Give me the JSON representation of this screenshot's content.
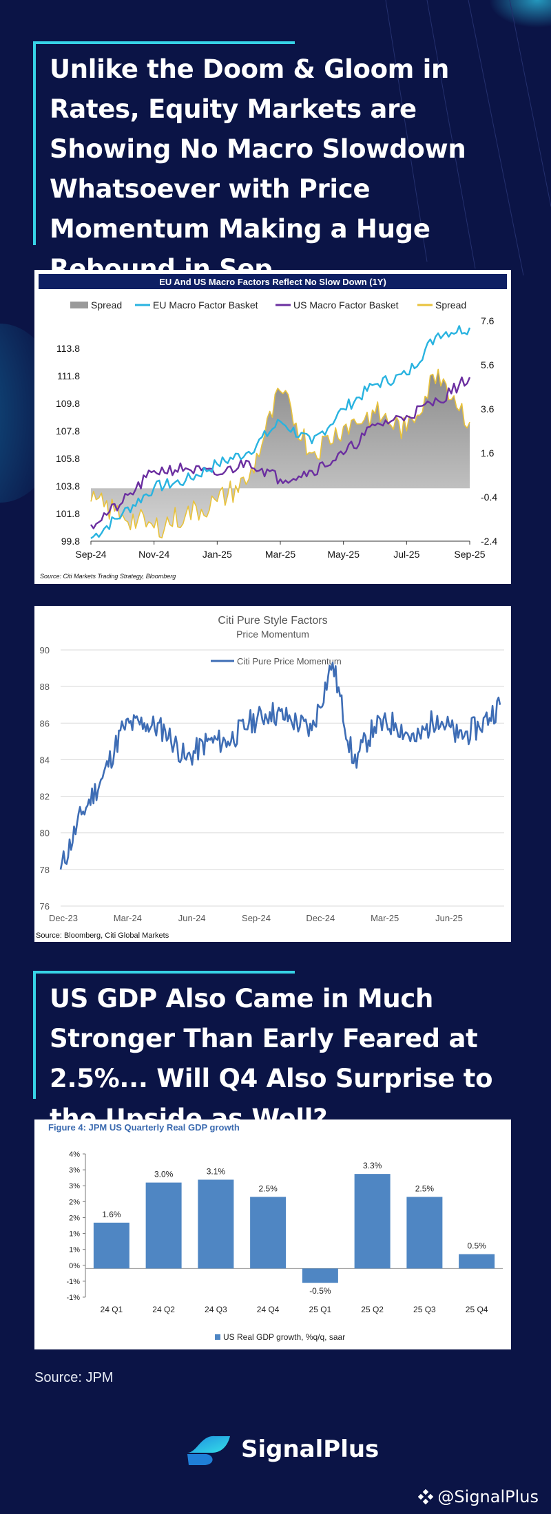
{
  "headline1": "Unlike the Doom & Gloom in Rates, Equity Markets are Showing No Macro Slowdown Whatsoever with Price Momentum Making a Huge Rebound in Sep",
  "headline2": "US GDP Also Came in Much Stronger Than Early Feared at 2.5%... Will Q4 Also Surprise to the Upside as Well?",
  "footer_source": "Source: JPM",
  "brand": {
    "name": "SignalPlus",
    "handle": "@SignalPlus"
  },
  "colors": {
    "background": "#0b1446",
    "accent": "#37d3e6",
    "eu": "#29b3e0",
    "us": "#6b2fa0",
    "spread_line": "#e8c23c",
    "momentum": "#3e6db5",
    "gdp_bar": "#4f86c3"
  },
  "chart_data": [
    {
      "type": "line",
      "title": "EU And US Macro Factors Reflect No Slow Down (1Y)",
      "source": "Source: Citi Markets Trading Strategy, Bloomberg",
      "legend": [
        "Spread",
        "EU Macro Factor Basket",
        "US Macro Factor Basket",
        "Spread"
      ],
      "legend_position": "top",
      "x_ticks": [
        "Sep-24",
        "Nov-24",
        "Jan-25",
        "Mar-25",
        "May-25",
        "Jul-25",
        "Sep-25"
      ],
      "y_left_ticks": [
        "99.8",
        "101.8",
        "103.8",
        "105.8",
        "107.8",
        "109.8",
        "111.8",
        "113.8"
      ],
      "y_right_ticks": [
        "-2.4",
        "-0.4",
        "1.6",
        "3.6",
        "5.6",
        "7.6"
      ],
      "ylim_left": [
        99.8,
        115.8
      ],
      "ylim_right": [
        -2.4,
        7.6
      ],
      "x": [
        "Sep-24",
        "Oct-24",
        "Nov-24",
        "Dec-24",
        "Jan-25",
        "Feb-25",
        "Mar-25",
        "Apr-25",
        "May-25",
        "Jun-25",
        "Jul-25",
        "Aug-25",
        "Sep-25"
      ],
      "series": [
        {
          "name": "EU Macro Factor Basket",
          "axis": "left",
          "values": [
            100.0,
            101.8,
            103.7,
            104.2,
            105.4,
            106.3,
            108.5,
            106.9,
            109.4,
            111.2,
            111.9,
            114.9,
            115.3
          ]
        },
        {
          "name": "US Macro Factor Basket",
          "axis": "left",
          "values": [
            101.0,
            102.6,
            104.9,
            105.1,
            104.6,
            105.6,
            104.3,
            104.9,
            106.1,
            108.2,
            108.9,
            110.0,
            111.7
          ]
        },
        {
          "name": "Spread",
          "axis": "right",
          "values": [
            -0.6,
            -1.2,
            -1.8,
            -1.2,
            -0.6,
            0.4,
            4.4,
            1.6,
            2.8,
            3.4,
            2.6,
            5.4,
            3.0
          ]
        }
      ]
    },
    {
      "type": "line",
      "title": "Citi Pure Style Factors",
      "subtitle": "Price Momentum",
      "source": "Source: Bloomberg, Citi Global Markets",
      "legend": [
        "Citi Pure Price Momentum"
      ],
      "legend_position": "top",
      "x_ticks": [
        "Dec-23",
        "Mar-24",
        "Jun-24",
        "Sep-24",
        "Dec-24",
        "Mar-25",
        "Jun-25"
      ],
      "y_ticks": [
        "76",
        "78",
        "80",
        "82",
        "84",
        "86",
        "88",
        "90"
      ],
      "ylim": [
        76,
        90
      ],
      "x": [
        "Dec-23",
        "Jan-24",
        "Feb-24",
        "Mar-24",
        "Apr-24",
        "May-24",
        "Jun-24",
        "Jul-24",
        "Aug-24",
        "Sep-24",
        "Oct-24",
        "Nov-24",
        "Dec-24",
        "Jan-25",
        "Feb-25",
        "Mar-25",
        "Apr-25",
        "May-25",
        "Jun-25",
        "Jul-25",
        "Aug-25",
        "Sep-25"
      ],
      "series": [
        {
          "name": "Citi Pure Price Momentum",
          "values": [
            78.0,
            81.0,
            83.0,
            85.8,
            86.0,
            85.6,
            84.0,
            85.0,
            85.0,
            86.0,
            86.6,
            86.2,
            85.6,
            89.3,
            83.8,
            85.8,
            86.0,
            85.0,
            86.4,
            85.2,
            85.8,
            87.0
          ]
        }
      ]
    },
    {
      "type": "bar",
      "title": "Figure 4: JPM US Quarterly Real GDP growth",
      "legend": [
        "US Real GDP growth, %q/q, saar"
      ],
      "legend_position": "bottom",
      "categories": [
        "24 Q1",
        "24 Q2",
        "24 Q3",
        "24 Q4",
        "25 Q1",
        "25 Q2",
        "25 Q3",
        "25 Q4"
      ],
      "values": [
        1.6,
        3.0,
        3.1,
        2.5,
        -0.5,
        3.3,
        2.5,
        0.5
      ],
      "data_labels": [
        "1.6%",
        "3.0%",
        "3.1%",
        "2.5%",
        "-0.5%",
        "3.3%",
        "2.5%",
        "0.5%"
      ],
      "y_ticks": [
        "4%",
        "3%",
        "3%",
        "2%",
        "2%",
        "1%",
        "1%",
        "0%",
        "-1%",
        "-1%"
      ],
      "ylim": [
        -1.0,
        4.0
      ]
    }
  ]
}
